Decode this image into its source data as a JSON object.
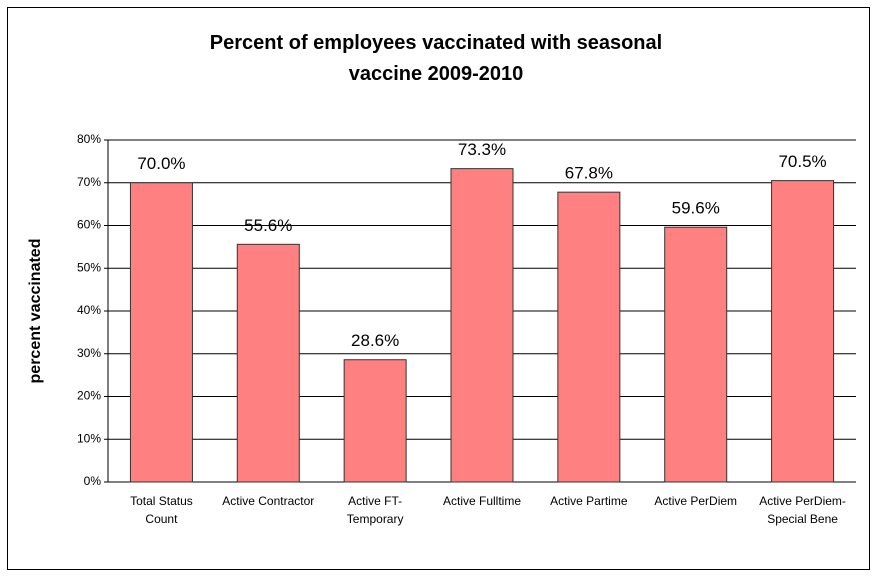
{
  "chart_data": {
    "type": "bar",
    "title": "Percent of employees vaccinated with seasonal vaccine 2009-2010",
    "y_label": "percent vaccinated",
    "categories": [
      "Total Status Count",
      "Active Contractor",
      "Active FT-Temporary",
      "Active Fulltime",
      "Active Partime",
      "Active PerDiem",
      "Active PerDiem-Special Bene"
    ],
    "values": [
      70.0,
      55.6,
      28.6,
      73.3,
      67.8,
      59.6,
      70.5
    ],
    "value_labels": [
      "70.0%",
      "55.6%",
      "28.6%",
      "73.3%",
      "67.8%",
      "59.6%",
      "70.5%"
    ],
    "color": "#ff8080",
    "ylim": [
      0,
      80
    ],
    "yticks": [
      {
        "value": 0,
        "label": "0%"
      },
      {
        "value": 10,
        "label": "10%"
      },
      {
        "value": 20,
        "label": "20%"
      },
      {
        "value": 30,
        "label": "30%"
      },
      {
        "value": 40,
        "label": "40%"
      },
      {
        "value": 50,
        "label": "50%"
      },
      {
        "value": 60,
        "label": "60%"
      },
      {
        "value": 70,
        "label": "70%"
      },
      {
        "value": 80,
        "label": "80%"
      }
    ],
    "grid": true
  }
}
